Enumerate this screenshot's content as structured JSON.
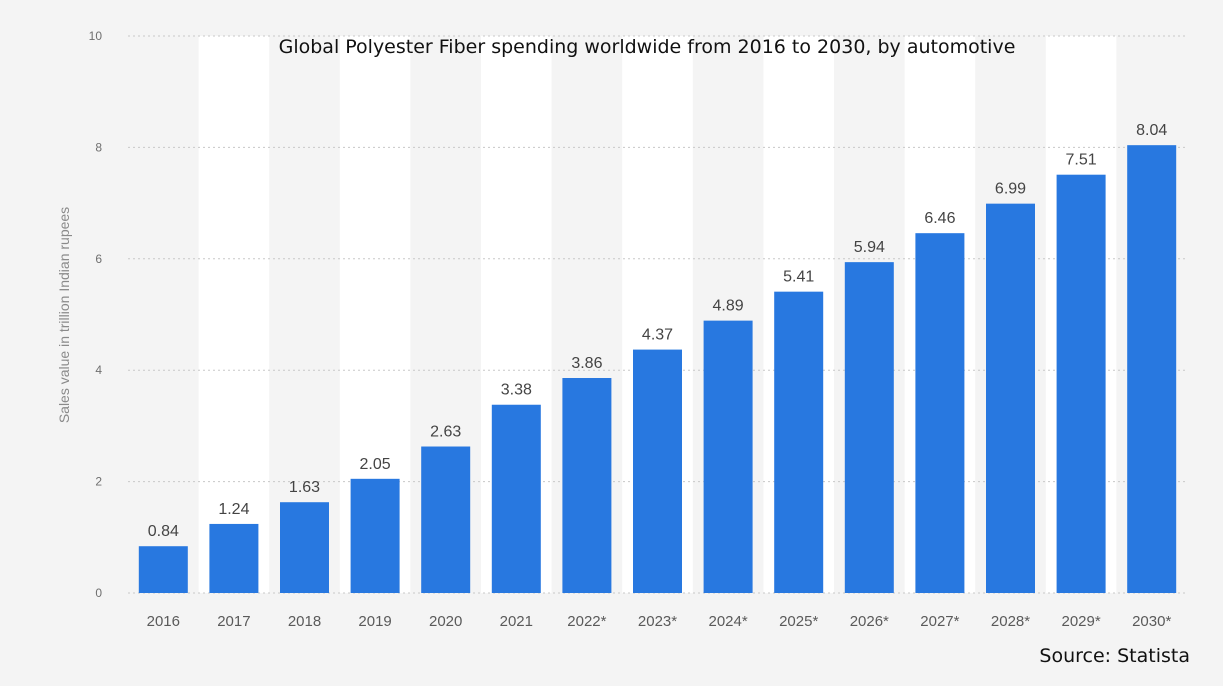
{
  "chart_data": {
    "type": "bar",
    "title": "Global Polyester Fiber spending worldwide from 2016 to 2030, by automotive",
    "xlabel": "",
    "ylabel": "Sales value in trillion Indian rupees",
    "categories": [
      "2016",
      "2017",
      "2018",
      "2019",
      "2020",
      "2021",
      "2022*",
      "2023*",
      "2024*",
      "2025*",
      "2026*",
      "2027*",
      "2028*",
      "2029*",
      "2030*"
    ],
    "values": [
      0.84,
      1.24,
      1.63,
      2.05,
      2.63,
      3.38,
      3.86,
      4.37,
      4.89,
      5.41,
      5.94,
      6.46,
      6.99,
      7.51,
      8.04
    ],
    "value_labels": [
      "0.84",
      "1.24",
      "1.63",
      "2.05",
      "2.63",
      "3.38",
      "3.86",
      "4.37",
      "4.89",
      "5.41",
      "5.94",
      "6.46",
      "6.99",
      "7.51",
      "8.04"
    ],
    "ylim": [
      0,
      10
    ],
    "yticks": [
      "0",
      "2",
      "4",
      "6",
      "8",
      "10"
    ],
    "grid": true,
    "legend": "none",
    "bar_color": "#2878e0",
    "band_color": "#ffffff",
    "source": "Source: Statista"
  }
}
